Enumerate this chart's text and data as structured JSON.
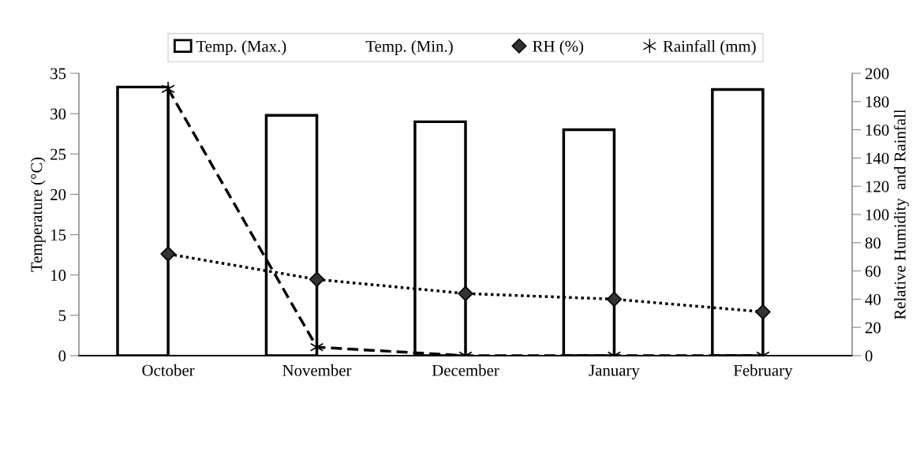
{
  "chart_data": {
    "type": "bar",
    "categories": [
      "October",
      "November",
      "December",
      "January",
      "February"
    ],
    "series": [
      {
        "name": "Temp. (Max.)",
        "color": "#000000",
        "values": [
          33.3,
          29.8,
          29.0,
          28.0,
          33.0
        ]
      },
      {
        "name": "Temp. (Min.)",
        "values": [
          null,
          null,
          null,
          null,
          null
        ]
      },
      {
        "name": "RH (%)",
        "type": "line",
        "axis": "y2",
        "color": "#000000",
        "marker": "diamond",
        "line_style": "dotted",
        "values": [
          72,
          54,
          44,
          40,
          31
        ]
      },
      {
        "name": "Rainfall (mm)",
        "type": "line",
        "axis": "y2",
        "color": "#000000",
        "marker": "cross",
        "line_style": "dashed",
        "values": [
          189,
          6,
          0,
          0,
          0
        ]
      }
    ],
    "ylabel": "Temperature (°C)",
    "y2label": "Relative Humidity  and Rainfall",
    "ylim": [
      0,
      35
    ],
    "yticks": [
      0,
      5,
      10,
      15,
      20,
      25,
      30,
      35
    ],
    "y2lim": [
      0,
      200
    ],
    "y2ticks": [
      0,
      20,
      40,
      60,
      80,
      100,
      120,
      140,
      160,
      180,
      200
    ],
    "grid": false,
    "legend": "top"
  }
}
